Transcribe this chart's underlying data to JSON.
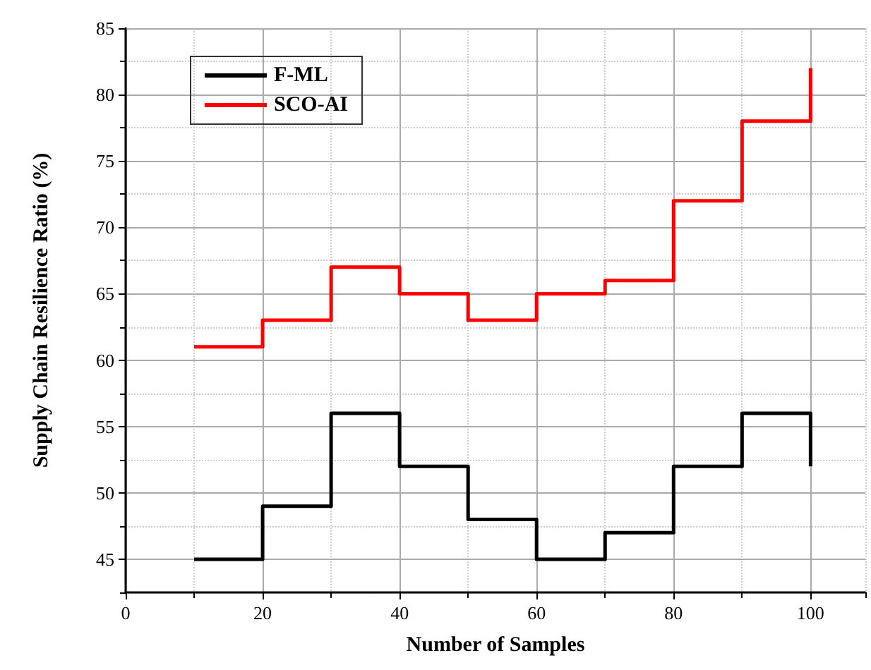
{
  "chart_data": {
    "type": "step",
    "xlabel": "Number of Samples",
    "ylabel": "Supply Chain Resilience Ratio (%)",
    "x": [
      10,
      20,
      30,
      40,
      50,
      60,
      70,
      80,
      90,
      100
    ],
    "series": [
      {
        "name": "F-ML",
        "color": "#000000",
        "values": [
          45,
          49,
          56,
          52,
          48,
          45,
          47,
          52,
          56,
          52
        ]
      },
      {
        "name": "SCO-AI",
        "color": "#ff0000",
        "values": [
          61,
          63,
          67,
          65,
          63,
          65,
          66,
          72,
          78,
          82
        ]
      }
    ],
    "xlim": [
      0,
      108
    ],
    "xticks": [
      0,
      20,
      40,
      60,
      80,
      100
    ],
    "ylim": [
      42.5,
      85
    ],
    "yticks": [
      45,
      50,
      55,
      60,
      65,
      70,
      75,
      80,
      85
    ],
    "grid": true,
    "legend": "top left",
    "marker": "none",
    "line_style": "solid"
  }
}
